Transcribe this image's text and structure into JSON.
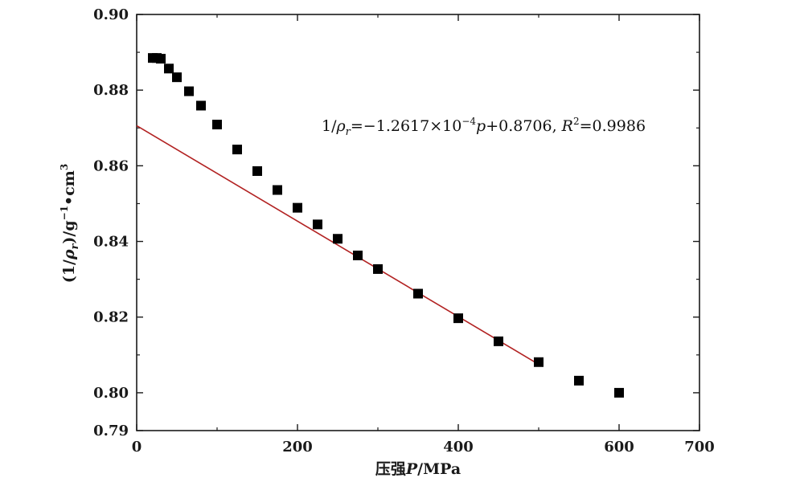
{
  "chart_data": {
    "type": "scatter",
    "xlabel_prefix": "压强",
    "xlabel_var": "P",
    "xlabel_unit": "/MPa",
    "ylabel_lead": "(1/",
    "ylabel_var": "ρ",
    "ylabel_sub": "r",
    "ylabel_mid": ")/g",
    "ylabel_sup1": "−1",
    "ylabel_dot": "•cm",
    "ylabel_sup2": "3",
    "xlim": [
      0,
      700
    ],
    "ylim": [
      0.79,
      0.9
    ],
    "xticks": [
      "0",
      "200",
      "400",
      "600",
      "700"
    ],
    "xtick_values": [
      0,
      200,
      400,
      600,
      700
    ],
    "yticks": [
      "0.79",
      "0.80",
      "0.82",
      "0.84",
      "0.86",
      "0.88",
      "0.90"
    ],
    "ytick_values": [
      0.79,
      0.8,
      0.82,
      0.84,
      0.86,
      0.88,
      0.9
    ],
    "grid": false,
    "series": [
      {
        "marker": "square",
        "color": "#000000",
        "x": [
          20,
          25,
          30,
          40,
          50,
          65,
          80,
          100,
          125,
          150,
          175,
          200,
          225,
          250,
          275,
          300,
          350,
          400,
          450,
          500,
          550,
          600
        ],
        "y": [
          0.8885,
          0.8885,
          0.8883,
          0.8857,
          0.8834,
          0.8797,
          0.8759,
          0.8709,
          0.8643,
          0.8586,
          0.8536,
          0.8489,
          0.8445,
          0.8407,
          0.8363,
          0.8327,
          0.8262,
          0.8197,
          0.8136,
          0.8081,
          0.8032,
          0.8
        ]
      }
    ],
    "fit_line": {
      "color": "#b22222",
      "slope": -0.00012617,
      "intercept": 0.8706,
      "x_range": [
        0,
        500
      ]
    },
    "annotation": {
      "lead": "1/",
      "var": "ρ",
      "sub": "r",
      "eq1": "=−1.2617×10",
      "exp": "−4",
      "var2": "p",
      "eq2": "+0.8706, ",
      "r": "R",
      "r_sup": "2",
      "eq3": "=0.9986"
    }
  }
}
